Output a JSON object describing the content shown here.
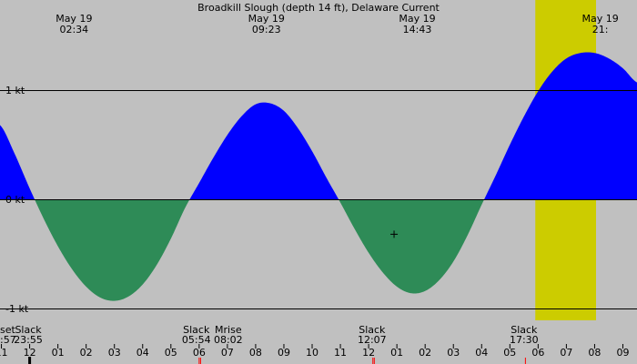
{
  "chart_data": {
    "type": "area",
    "title": "Broadkill Slough (depth 14 ft), Delaware Current",
    "colors": {
      "night": "#c0c0c0",
      "day": "#cccc00",
      "flood": "#0000ff",
      "ebb": "#2e8b57",
      "line": "#000000"
    },
    "ylim": [
      -1.0,
      1.45
    ],
    "xlim": [
      10.95,
      33.5
    ],
    "y_ticks": [
      {
        "value": 1,
        "label": "1 kt"
      },
      {
        "value": 0,
        "label": "0 kt"
      },
      {
        "value": -1,
        "label": "-1 kt"
      }
    ],
    "daylight": [
      29.9,
      32.05
    ],
    "series": [
      {
        "x": [
          10.95,
          11.5,
          12.0,
          12.5,
          13.0,
          13.5,
          14.0,
          14.5,
          15.0,
          15.5,
          16.0,
          16.5,
          17.0,
          17.5,
          18.0,
          18.5,
          19.0,
          19.5,
          20.0,
          20.5,
          21.0,
          21.5,
          22.0,
          22.5,
          23.0,
          23.5,
          24.0,
          24.5,
          25.0,
          25.5,
          26.0,
          26.5,
          27.0,
          27.5,
          28.0,
          28.5,
          29.0,
          29.5,
          30.0,
          30.5,
          31.0,
          31.5,
          32.0,
          32.5,
          33.0,
          33.5
        ],
        "values": [
          0.68,
          0.4,
          0.1,
          -0.18,
          -0.43,
          -0.64,
          -0.8,
          -0.9,
          -0.93,
          -0.89,
          -0.78,
          -0.6,
          -0.36,
          -0.08,
          0.15,
          0.38,
          0.59,
          0.76,
          0.87,
          0.88,
          0.81,
          0.65,
          0.44,
          0.2,
          -0.03,
          -0.27,
          -0.49,
          -0.67,
          -0.8,
          -0.86,
          -0.84,
          -0.74,
          -0.57,
          -0.33,
          -0.05,
          0.22,
          0.5,
          0.76,
          0.99,
          1.17,
          1.29,
          1.34,
          1.34,
          1.29,
          1.2,
          1.07
        ]
      }
    ],
    "top_labels": [
      {
        "x": 13.57,
        "date": "May 19",
        "time": "02:34"
      },
      {
        "x": 20.38,
        "date": "May 19",
        "time": "09:23"
      },
      {
        "x": 25.72,
        "date": "May 19",
        "time": "14:43"
      },
      {
        "x": 32.2,
        "date": "May 19",
        "time": "21:"
      }
    ],
    "event_labels": [
      {
        "x": 10.95,
        "name": "set",
        "time": ":57"
      },
      {
        "x": 11.95,
        "name": "Slack",
        "time": "23:55"
      },
      {
        "x": 17.9,
        "name": "Slack",
        "time": "05:54"
      },
      {
        "x": 19.03,
        "name": "Mrise",
        "time": "08:02"
      },
      {
        "x": 24.12,
        "name": "Slack",
        "time": "12:07"
      },
      {
        "x": 29.5,
        "name": "Slack",
        "time": "17:30"
      }
    ],
    "x_ticks": [
      {
        "x": 11,
        "label": "11"
      },
      {
        "x": 12,
        "label": "12"
      },
      {
        "x": 13,
        "label": "01"
      },
      {
        "x": 14,
        "label": "02"
      },
      {
        "x": 15,
        "label": "03"
      },
      {
        "x": 16,
        "label": "04"
      },
      {
        "x": 17,
        "label": "05"
      },
      {
        "x": 18,
        "label": "06"
      },
      {
        "x": 19,
        "label": "07"
      },
      {
        "x": 20,
        "label": "08"
      },
      {
        "x": 21,
        "label": "09"
      },
      {
        "x": 22,
        "label": "10"
      },
      {
        "x": 23,
        "label": "11"
      },
      {
        "x": 24,
        "label": "12"
      },
      {
        "x": 25,
        "label": "01"
      },
      {
        "x": 26,
        "label": "02"
      },
      {
        "x": 27,
        "label": "03"
      },
      {
        "x": 28,
        "label": "04"
      },
      {
        "x": 29,
        "label": "05"
      },
      {
        "x": 30,
        "label": "06"
      },
      {
        "x": 31,
        "label": "07"
      },
      {
        "x": 32,
        "label": "08"
      },
      {
        "x": 33,
        "label": "09"
      }
    ],
    "markers": [
      {
        "x": 12.0,
        "color": "#000000",
        "height": "tall"
      },
      {
        "x": 18.0,
        "color": "#ff0000",
        "height": "short"
      },
      {
        "x": 18.05,
        "color": "#ff0000",
        "height": "short"
      },
      {
        "x": 24.15,
        "color": "#ff0000",
        "height": "short"
      },
      {
        "x": 24.2,
        "color": "#ff0000",
        "height": "short"
      },
      {
        "x": 29.55,
        "color": "#ff0000",
        "height": "short"
      }
    ],
    "now_marker": {
      "x": 24.9,
      "y": -0.32
    }
  }
}
